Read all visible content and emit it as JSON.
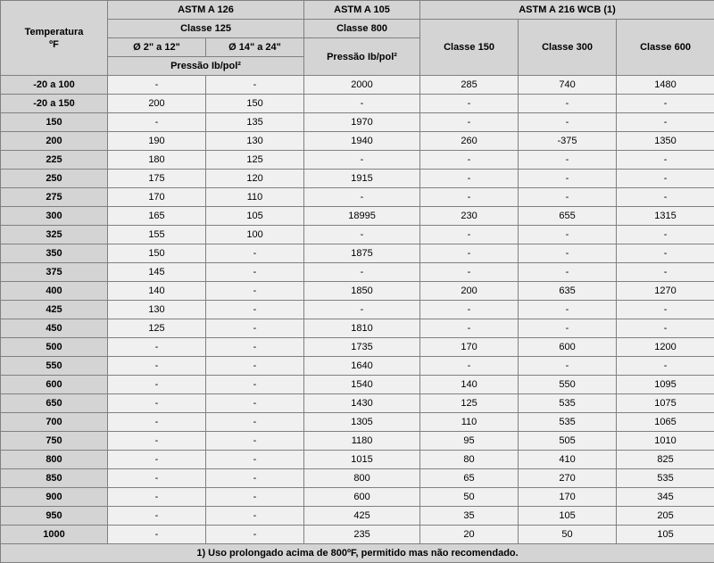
{
  "header": {
    "temp_label1": "Temperatura",
    "temp_label2": "ºF",
    "astm_a126": "ASTM A 126",
    "astm_a105": "ASTM A 105",
    "astm_a216": "ASTM A 216 WCB (1)",
    "classe125": "Classe 125",
    "classe800": "Classe 800",
    "classe150": "Classe 150",
    "classe300": "Classe 300",
    "classe600": "Classe 600",
    "diam_2_12": "Ø 2\" a 12\"",
    "diam_14_24": "Ø 14\" a 24\"",
    "press_a126": "Pressão Ib/pol²",
    "press_a105": "Pressão Ib/pol²"
  },
  "rows": [
    {
      "t": "-20 a 100",
      "c": [
        "-",
        "-",
        "2000",
        "285",
        "740",
        "1480"
      ]
    },
    {
      "t": "-20 a 150",
      "c": [
        "200",
        "150",
        "-",
        "-",
        "-",
        "-"
      ]
    },
    {
      "t": "150",
      "c": [
        "-",
        "135",
        "1970",
        "-",
        "-",
        "-"
      ]
    },
    {
      "t": "200",
      "c": [
        "190",
        "130",
        "1940",
        "260",
        "-375",
        "1350"
      ]
    },
    {
      "t": "225",
      "c": [
        "180",
        "125",
        "-",
        "-",
        "-",
        "-"
      ]
    },
    {
      "t": "250",
      "c": [
        "175",
        "120",
        "1915",
        "-",
        "-",
        "-"
      ]
    },
    {
      "t": "275",
      "c": [
        "170",
        "110",
        "-",
        "-",
        "-",
        "-"
      ]
    },
    {
      "t": "300",
      "c": [
        "165",
        "105",
        "18995",
        "230",
        "655",
        "1315"
      ]
    },
    {
      "t": "325",
      "c": [
        "155",
        "100",
        "-",
        "-",
        "-",
        "-"
      ]
    },
    {
      "t": "350",
      "c": [
        "150",
        "-",
        "1875",
        "-",
        "-",
        "-"
      ]
    },
    {
      "t": "375",
      "c": [
        "145",
        "-",
        "-",
        "-",
        "-",
        "-"
      ]
    },
    {
      "t": "400",
      "c": [
        "140",
        "-",
        "1850",
        "200",
        "635",
        "1270"
      ]
    },
    {
      "t": "425",
      "c": [
        "130",
        "-",
        "-",
        "-",
        "-",
        "-"
      ]
    },
    {
      "t": "450",
      "c": [
        "125",
        "-",
        "1810",
        "-",
        "-",
        "-"
      ]
    },
    {
      "t": "500",
      "c": [
        "-",
        "-",
        "1735",
        "170",
        "600",
        "1200"
      ]
    },
    {
      "t": "550",
      "c": [
        "-",
        "-",
        "1640",
        "-",
        "-",
        "-"
      ]
    },
    {
      "t": "600",
      "c": [
        "-",
        "-",
        "1540",
        "140",
        "550",
        "1095"
      ]
    },
    {
      "t": "650",
      "c": [
        "-",
        "-",
        "1430",
        "125",
        "535",
        "1075"
      ]
    },
    {
      "t": "700",
      "c": [
        "-",
        "-",
        "1305",
        "110",
        "535",
        "1065"
      ]
    },
    {
      "t": "750",
      "c": [
        "-",
        "-",
        "1180",
        "95",
        "505",
        "1010"
      ]
    },
    {
      "t": "800",
      "c": [
        "-",
        "-",
        "1015",
        "80",
        "410",
        "825"
      ]
    },
    {
      "t": "850",
      "c": [
        "-",
        "-",
        "800",
        "65",
        "270",
        "535"
      ]
    },
    {
      "t": "900",
      "c": [
        "-",
        "-",
        "600",
        "50",
        "170",
        "345"
      ]
    },
    {
      "t": "950",
      "c": [
        "-",
        "-",
        "425",
        "35",
        "105",
        "205"
      ]
    },
    {
      "t": "1000",
      "c": [
        "-",
        "-",
        "235",
        "20",
        "50",
        "105"
      ]
    }
  ],
  "footnote": "1) Uso prolongado acima de 800ºF, permitido mas não recomendado."
}
